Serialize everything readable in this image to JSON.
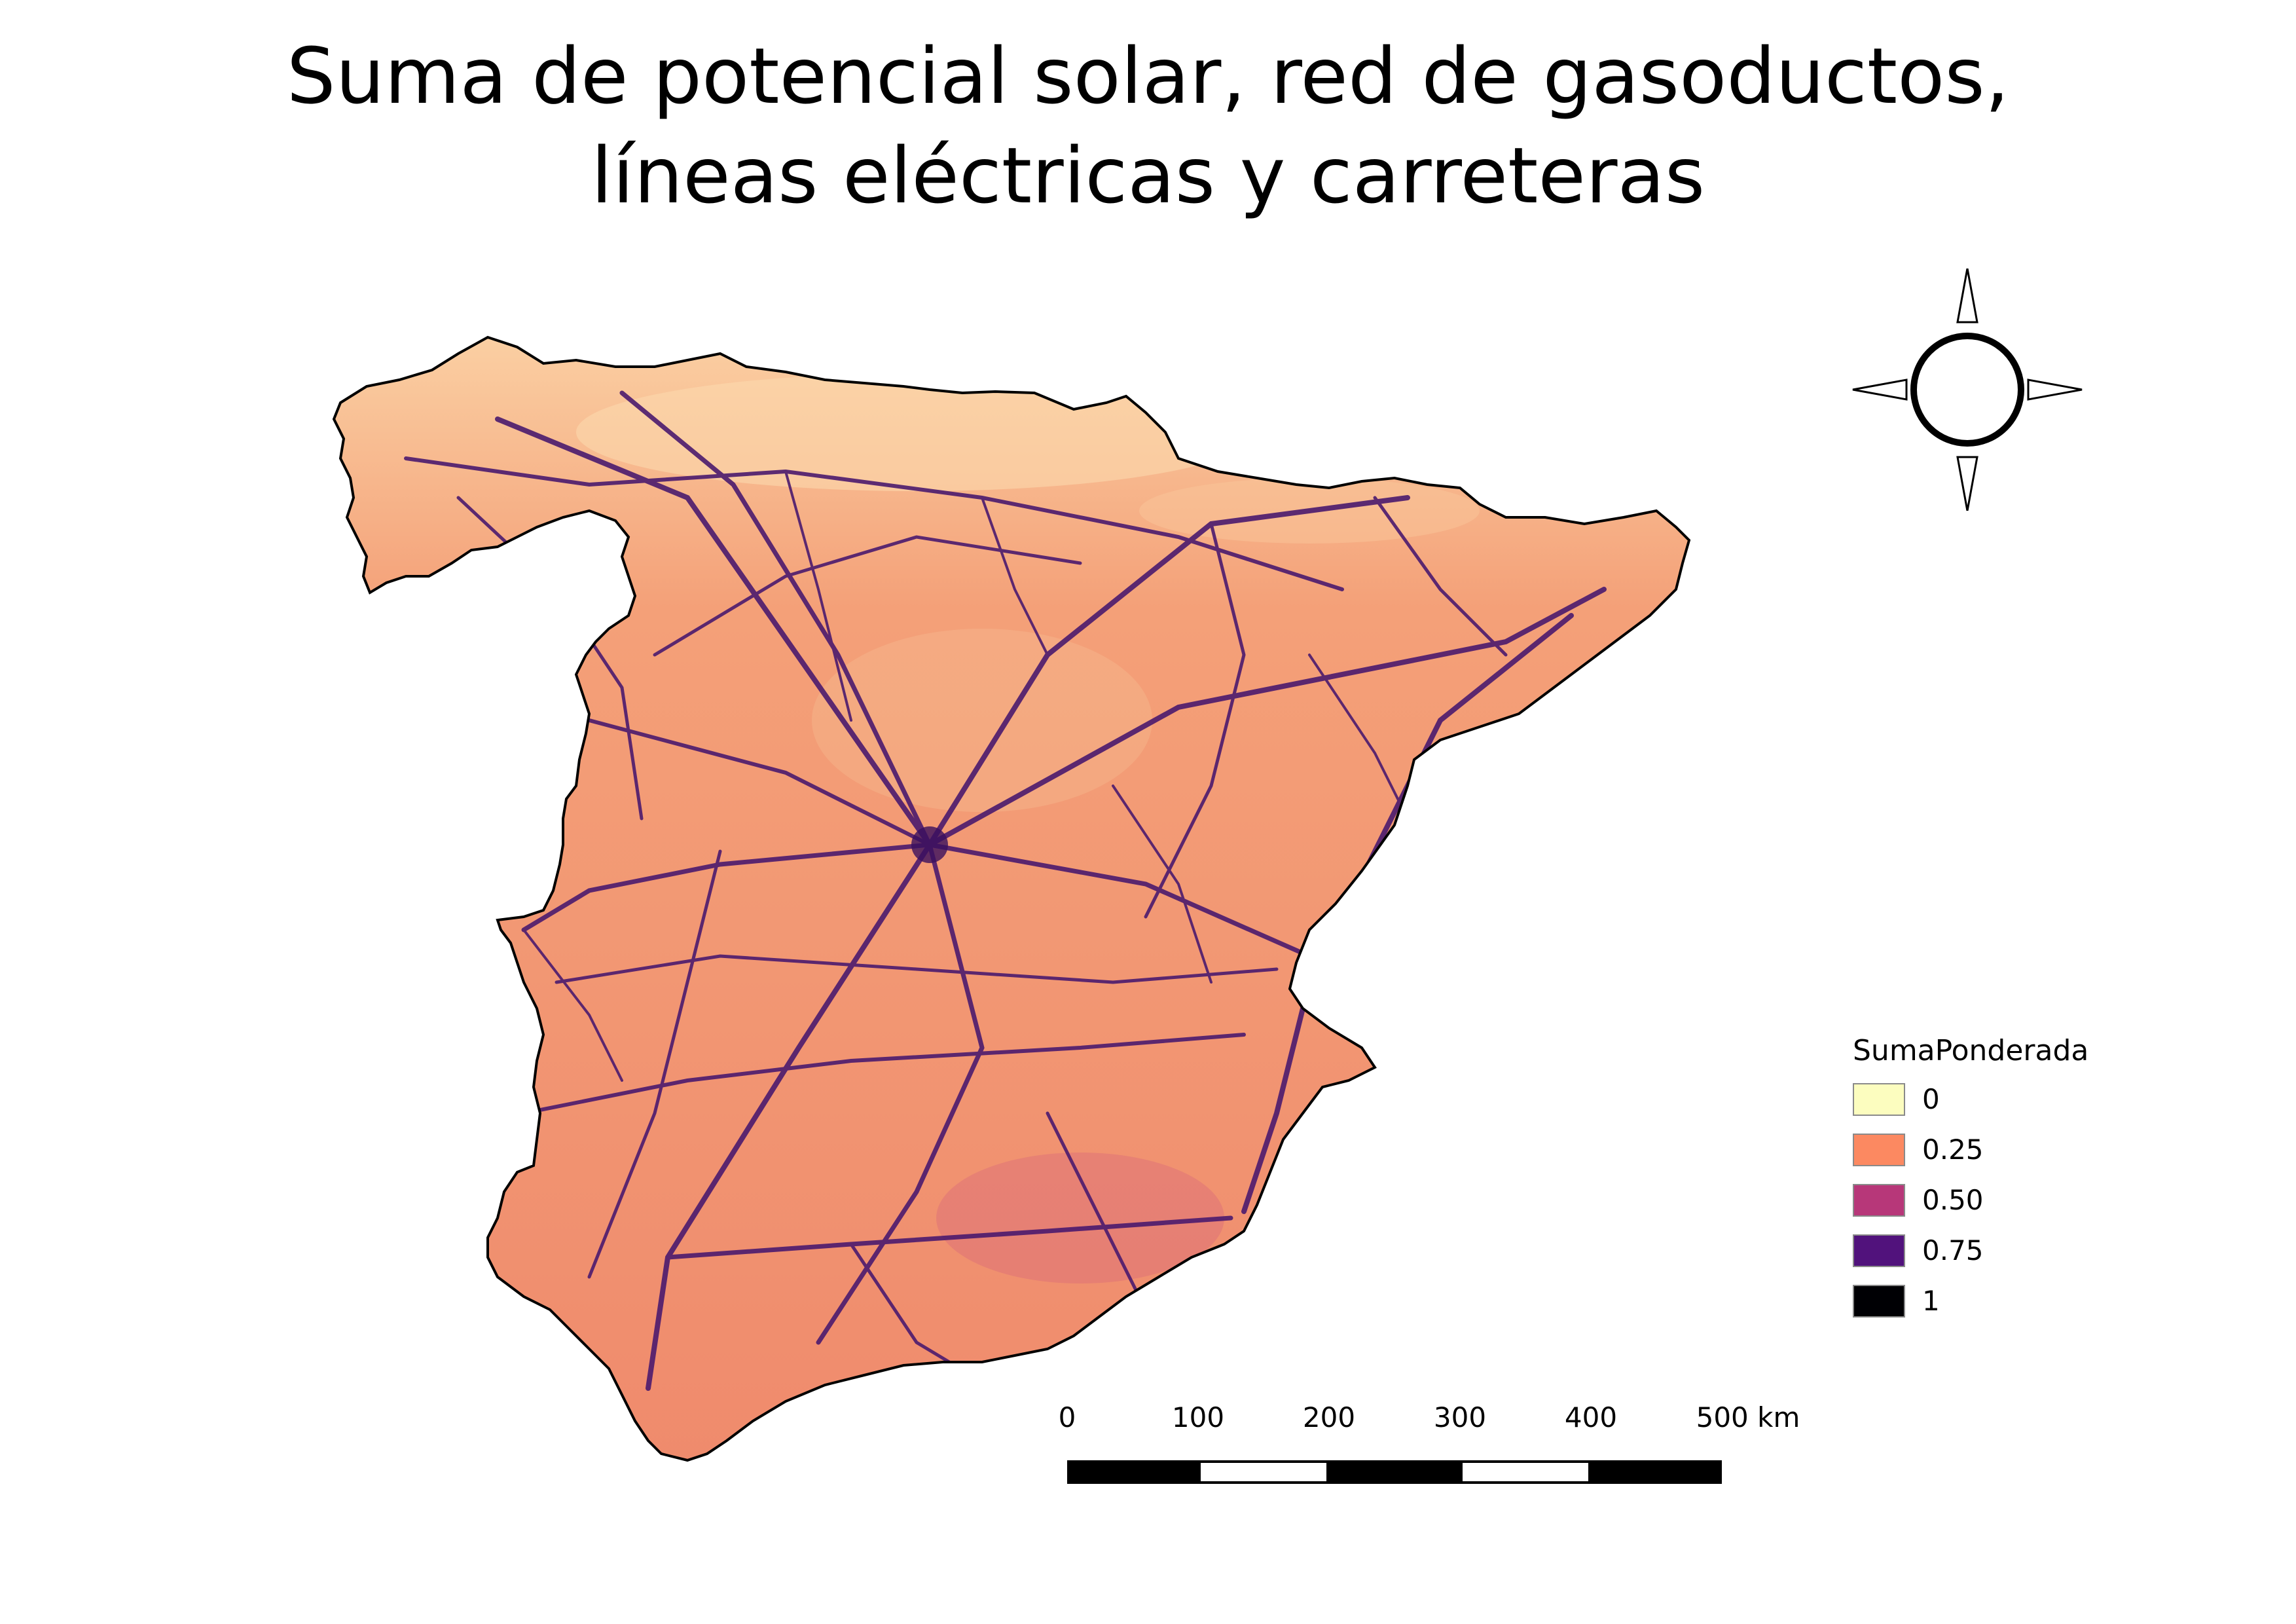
{
  "title": {
    "line1": "Suma de potencial solar, red de gasoductos,",
    "line2": "líneas eléctricas y carreteras"
  },
  "map": {
    "region": "Spain (peninsular)",
    "base_color": "#f08a6a",
    "network_color": "#4b1a6e",
    "outline_color": "#000000"
  },
  "north_arrow": {
    "icon": "compass-rose-icon"
  },
  "legend": {
    "title": "SumaPonderada",
    "items": [
      {
        "label": "0",
        "color": "#fcfdbf"
      },
      {
        "label": "0.25",
        "color": "#fc8961"
      },
      {
        "label": "0.50",
        "color": "#b73779"
      },
      {
        "label": "0.75",
        "color": "#51127c"
      },
      {
        "label": "1",
        "color": "#000004"
      }
    ]
  },
  "scalebar": {
    "unit": "km",
    "ticks": [
      "0",
      "100",
      "200",
      "300",
      "400",
      "500 km"
    ]
  }
}
